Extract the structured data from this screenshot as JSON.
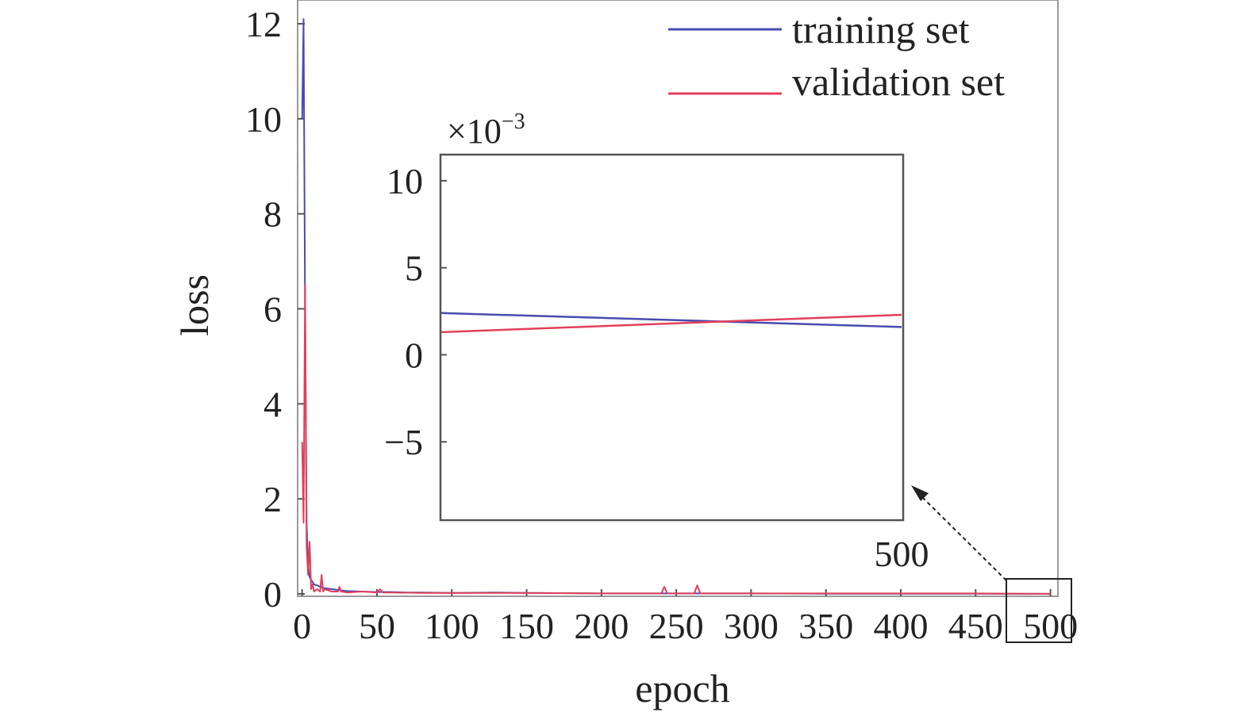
{
  "chart_data": {
    "type": "line",
    "xlabel": "epoch",
    "ylabel": "loss",
    "xlim": [
      -3,
      505
    ],
    "ylim": [
      -0.05,
      12.5
    ],
    "x_ticks": [
      "0",
      "50",
      "100",
      "150",
      "200",
      "250",
      "300",
      "350",
      "400",
      "450",
      "500"
    ],
    "y_ticks": [
      "0",
      "2",
      "4",
      "6",
      "8",
      "10",
      "12"
    ],
    "legend_position": "top-right",
    "grid": false,
    "series": [
      {
        "name": "training set",
        "color": "#4a4ab0",
        "x": [
          0,
          1,
          2,
          3,
          4,
          5,
          6,
          7,
          8,
          10,
          12,
          15,
          20,
          25,
          30,
          40,
          50,
          60,
          70,
          80,
          100,
          130,
          150,
          200,
          250,
          300,
          350,
          400,
          450,
          500
        ],
        "y": [
          10.0,
          12.1,
          6.0,
          1.5,
          0.6,
          0.35,
          0.3,
          0.25,
          0.2,
          0.18,
          0.15,
          0.12,
          0.1,
          0.08,
          0.06,
          0.05,
          0.04,
          0.04,
          0.03,
          0.03,
          0.02,
          0.03,
          0.02,
          0.01,
          0.01,
          0.01,
          0.005,
          0.005,
          0.003,
          0.002
        ]
      },
      {
        "name": "validation set",
        "color": "#e0405a",
        "x": [
          0,
          1,
          2,
          3,
          4,
          5,
          6,
          7,
          8,
          10,
          12,
          13,
          14,
          15,
          20,
          24,
          25,
          26,
          30,
          40,
          50,
          52,
          54,
          60,
          80,
          100,
          150,
          200,
          240,
          242,
          244,
          250,
          262,
          264,
          266,
          300,
          350,
          400,
          450,
          500
        ],
        "y": [
          3.2,
          1.5,
          6.5,
          1.0,
          0.4,
          1.1,
          0.1,
          0.2,
          0.05,
          0.1,
          0.05,
          0.4,
          0.05,
          0.1,
          0.05,
          0.05,
          0.15,
          0.05,
          0.03,
          0.05,
          0.03,
          0.1,
          0.03,
          0.03,
          0.02,
          0.02,
          0.02,
          0.01,
          0.01,
          0.15,
          0.01,
          0.01,
          0.01,
          0.18,
          0.01,
          0.01,
          0.01,
          0.01,
          0.01,
          0.002
        ]
      }
    ],
    "inset": {
      "multiplier": "×10",
      "multiplier_exponent": "−3",
      "ylim": [
        -9.5,
        11.5
      ],
      "y_ticks": [
        {
          "value": 10,
          "label": "10"
        },
        {
          "value": 5,
          "label": "5"
        },
        {
          "value": 0,
          "label": "0"
        },
        {
          "value": -5,
          "label": "−5"
        }
      ],
      "x_label": "500",
      "series": [
        {
          "name": "training set",
          "y_start": 2.4,
          "y_end": 1.6
        },
        {
          "name": "validation set",
          "y_start": 1.3,
          "y_end": 2.3
        }
      ]
    }
  }
}
